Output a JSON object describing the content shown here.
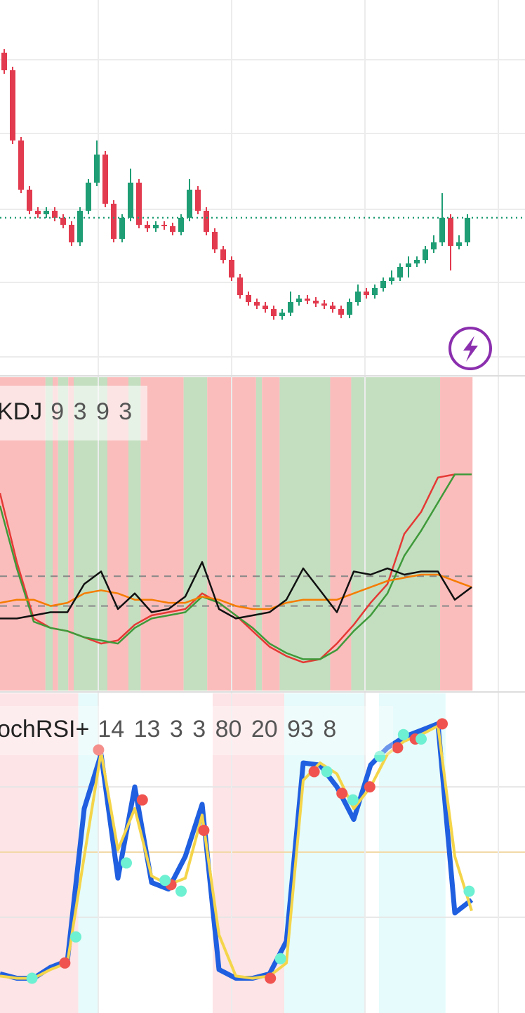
{
  "chart_data": [
    {
      "type": "candlestick",
      "xlim": [
        0,
        62.33
      ],
      "ylim": [
        0,
        107
      ],
      "up_color": "#1f9d74",
      "down_color": "#e23a4e",
      "open": [
        92,
        87,
        67,
        53,
        47,
        46,
        47,
        45,
        43,
        38,
        47,
        55,
        63,
        49,
        39,
        45,
        55,
        43,
        42,
        43,
        42.6,
        41,
        45,
        53,
        47,
        41,
        36,
        33,
        28,
        23,
        21,
        20,
        19,
        17,
        18,
        21,
        22,
        21.4,
        20.6,
        20,
        19,
        17.4,
        21,
        24,
        23,
        25,
        27,
        28,
        31,
        32,
        33,
        36,
        38,
        45,
        37,
        38
      ],
      "high": [
        93,
        88,
        68,
        54,
        48,
        48,
        48,
        46,
        44,
        48,
        56,
        67,
        64,
        50,
        46,
        59,
        56,
        44,
        44,
        44,
        43.6,
        46,
        56,
        54,
        48,
        42,
        37,
        34,
        29,
        24,
        22,
        21,
        20,
        19,
        24,
        23,
        23,
        22.4,
        21.6,
        21,
        20,
        22,
        26,
        25,
        26,
        28,
        30,
        32,
        34,
        34,
        37,
        40,
        52,
        46,
        40,
        46
      ],
      "low": [
        86,
        66,
        52,
        46,
        45,
        45,
        44,
        42,
        37,
        37,
        46,
        54,
        48,
        38,
        38,
        44,
        42,
        41,
        41,
        41.6,
        40,
        40,
        44,
        46,
        40,
        35,
        32,
        27,
        22,
        20,
        19,
        18,
        16,
        16,
        17,
        20,
        20.4,
        19.6,
        19,
        18,
        16.4,
        16.4,
        20,
        22,
        22,
        24,
        26,
        27,
        28,
        31,
        32,
        35,
        37,
        30,
        36,
        37
      ],
      "close": [
        87,
        67,
        53,
        47,
        46,
        47,
        45,
        43,
        38,
        47,
        55,
        63,
        49,
        39,
        45,
        55,
        43,
        42,
        43,
        42.6,
        41,
        45,
        53,
        47,
        41,
        36,
        33,
        28,
        23,
        21,
        20,
        19,
        17,
        18,
        21,
        22,
        21.4,
        20.6,
        20,
        19,
        17.4,
        21,
        24,
        23,
        25,
        27,
        28,
        31,
        32,
        33,
        36,
        38,
        45,
        37,
        38,
        45
      ]
    },
    {
      "type": "line",
      "title": "KDJ",
      "subtitle": "9 3 9 3",
      "xlim": [
        0,
        62.33
      ],
      "ylim": [
        0,
        100
      ],
      "levels": [
        36.5,
        27
      ],
      "bands": [
        {
          "from": 0,
          "to": 5.4,
          "color": "#fbbcbc"
        },
        {
          "from": 5.4,
          "to": 6.25,
          "color": "#c3dfc0"
        },
        {
          "from": 6.25,
          "to": 6.9,
          "color": "#fbbcbc"
        },
        {
          "from": 6.9,
          "to": 8.1,
          "color": "#c3dfc0"
        },
        {
          "from": 8.1,
          "to": 8.75,
          "color": "#fbbcbc"
        },
        {
          "from": 8.75,
          "to": 12.75,
          "color": "#c3dfc0"
        },
        {
          "from": 12.75,
          "to": 15.25,
          "color": "#fbbcbc"
        },
        {
          "from": 15.25,
          "to": 16.7,
          "color": "#c3dfc0"
        },
        {
          "from": 16.7,
          "to": 21.8,
          "color": "#fbbcbc"
        },
        {
          "from": 21.8,
          "to": 24.6,
          "color": "#c3dfc0"
        },
        {
          "from": 24.6,
          "to": 30.4,
          "color": "#fbbcbc"
        },
        {
          "from": 30.4,
          "to": 31.1,
          "color": "#c3dfc0"
        },
        {
          "from": 31.1,
          "to": 33.2,
          "color": "#fbbcbc"
        },
        {
          "from": 33.2,
          "to": 39.2,
          "color": "#c3dfc0"
        },
        {
          "from": 39.2,
          "to": 41.7,
          "color": "#fbbcbc"
        },
        {
          "from": 41.7,
          "to": 52.25,
          "color": "#c3dfc0"
        },
        {
          "from": 52.25,
          "to": 56.1,
          "color": "#fbbcbc"
        }
      ],
      "x": [
        0,
        2,
        4,
        6,
        8,
        10,
        12,
        14,
        16,
        18,
        20,
        22,
        24,
        26,
        28,
        30,
        32,
        34,
        36,
        38,
        40,
        42,
        44,
        46,
        48,
        50,
        52,
        54,
        56
      ],
      "series": [
        {
          "color": "#e53935",
          "values": [
            63,
            41,
            23,
            20,
            19,
            17,
            15,
            16,
            21,
            24,
            25,
            26,
            31,
            28,
            24,
            19,
            14,
            11,
            9,
            10,
            15,
            21,
            28,
            34,
            50,
            57,
            68,
            69,
            69
          ]
        },
        {
          "color": "#3f9a3a",
          "values": [
            59,
            39,
            22,
            20,
            19,
            17,
            16,
            15,
            20,
            23,
            24,
            25,
            30,
            28,
            24,
            20,
            15,
            12,
            10,
            10,
            13,
            19,
            24,
            31,
            43,
            51,
            60,
            69,
            69
          ]
        },
        {
          "color": "#f57c00",
          "values": [
            28,
            29,
            29,
            27,
            28,
            31,
            32,
            31,
            29,
            29,
            28,
            28,
            30,
            29,
            27,
            26,
            26,
            28,
            29,
            29,
            29,
            31,
            33,
            35,
            36,
            37,
            37,
            35,
            33
          ]
        },
        {
          "color": "#111111",
          "values": [
            23,
            23,
            24,
            25,
            25,
            34,
            38,
            26,
            31,
            25,
            26,
            30,
            41,
            26,
            23,
            24,
            25,
            29,
            39,
            32,
            25,
            38,
            37,
            39,
            37,
            38,
            38,
            29,
            33
          ]
        }
      ]
    },
    {
      "type": "line",
      "title": "ochRSI+",
      "subtitle": "14 13 3 3 80 20 93 8",
      "xlim": [
        0,
        62.33
      ],
      "ylim": [
        -24,
        123
      ],
      "levels": [
        80,
        50,
        20
      ],
      "level_colors": [
        "#e6e6e6",
        "#f3d9a8",
        "#e6e6e6"
      ],
      "bands": [
        {
          "from": 0,
          "to": 9.3,
          "color": "#fde4e6"
        },
        {
          "from": 9.3,
          "to": 11.7,
          "color": "#e6fbfb"
        },
        {
          "from": 25.25,
          "to": 33.75,
          "color": "#fde4e6"
        },
        {
          "from": 33.75,
          "to": 43.3,
          "color": "#e6fbfb"
        },
        {
          "from": 45,
          "to": 52.9,
          "color": "#e6fbfb"
        }
      ],
      "x": [
        0,
        2,
        4,
        6,
        8,
        10,
        12,
        14,
        16,
        18,
        20,
        22,
        24,
        26,
        28,
        30,
        32,
        34,
        36,
        38,
        40,
        42,
        44,
        46,
        48,
        50,
        52,
        54,
        56
      ],
      "series": [
        {
          "color": "#1f5fe0",
          "values": [
            -6,
            -8,
            -8,
            -3,
            0,
            70,
            95,
            38,
            80,
            36,
            33,
            48,
            72,
            -4,
            -8,
            -8,
            -6,
            9,
            91,
            90,
            80,
            65,
            90,
            98,
            103,
            106,
            109,
            22,
            28
          ]
        },
        {
          "color": "#f4d54a",
          "values": [
            -7,
            -8,
            -8,
            -4,
            -1,
            48,
            96,
            51,
            70,
            39,
            35,
            38,
            67,
            12,
            -7,
            -8,
            -7,
            -1,
            83,
            91,
            86,
            70,
            80,
            95,
            101,
            104,
            108,
            48,
            23
          ]
        }
      ],
      "signals": [
        {
          "color": "#f0534f",
          "x": [
            7.7,
            11.7,
            16.9,
            20.3,
            24.2,
            32.1,
            37.3,
            40.6,
            43.9,
            47.2,
            49.3,
            52.5
          ],
          "values": [
            -1,
            97,
            74,
            35,
            60,
            -8,
            87,
            77,
            80,
            98,
            102,
            109
          ]
        },
        {
          "color": "#6ef0d2",
          "x": [
            3.8,
            9,
            15,
            19.6,
            21.5,
            33.3,
            38.8,
            41.9,
            45.1,
            47.9,
            50,
            55.7
          ],
          "values": [
            -8,
            11,
            45,
            37,
            32,
            1,
            87,
            74,
            94,
            104,
            102,
            32
          ]
        }
      ]
    }
  ]
}
